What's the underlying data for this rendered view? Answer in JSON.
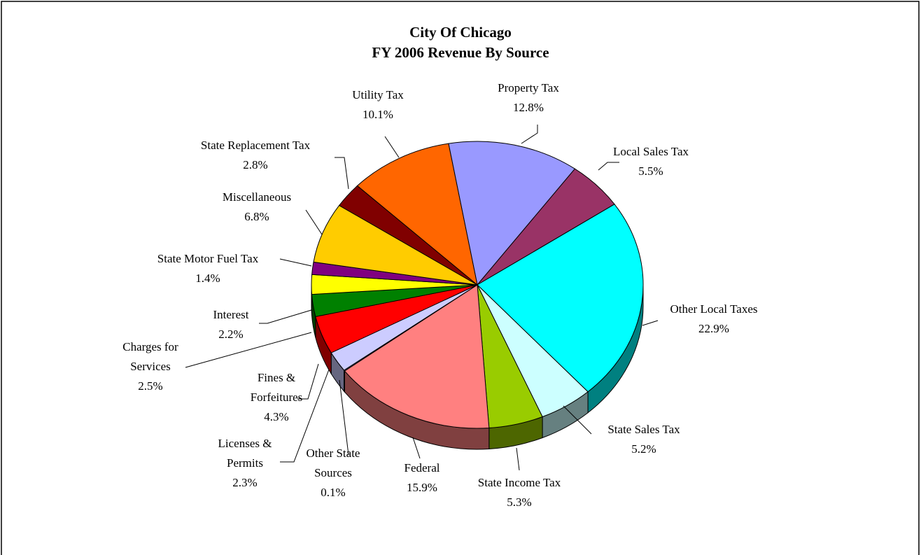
{
  "chart_data": {
    "type": "pie",
    "title": "City Of Chicago",
    "subtitle": "FY 2006 Revenue By Source",
    "categories": [
      "Property Tax",
      "Local Sales Tax",
      "Other Local Taxes",
      "State Sales Tax",
      "State Income Tax",
      "Federal",
      "Other State Sources",
      "Licenses & Permits",
      "Fines & Forfeitures",
      "Charges for Services",
      "Interest",
      "State Motor Fuel Tax",
      "Miscellaneous",
      "State Replacement Tax",
      "Utility Tax"
    ],
    "values": [
      12.8,
      5.5,
      22.9,
      5.2,
      5.3,
      15.9,
      0.1,
      2.3,
      4.3,
      2.5,
      2.2,
      1.4,
      6.8,
      2.8,
      10.1
    ],
    "value_labels": [
      "12.8%",
      "5.5%",
      "22.9%",
      "5.2%",
      "5.3%",
      "15.9%",
      "0.1%",
      "2.3%",
      "4.3%",
      "2.5%",
      "2.2%",
      "1.4%",
      "6.8%",
      "2.8%",
      "10.1%"
    ],
    "colors": [
      "#9999ff",
      "#993366",
      "#00ffff",
      "#ccffff",
      "#99cc00",
      "#ff8080",
      "#666699",
      "#ccccff",
      "#ff0000",
      "#008000",
      "#ffff00",
      "#800080",
      "#ffcc00",
      "#800000",
      "#ff6600"
    ]
  }
}
